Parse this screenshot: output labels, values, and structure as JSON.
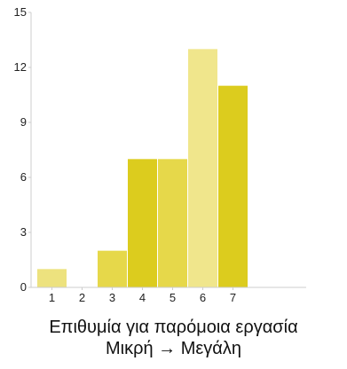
{
  "chart_data": {
    "type": "bar",
    "categories": [
      "1",
      "2",
      "3",
      "4",
      "5",
      "6",
      "7"
    ],
    "values": [
      1,
      0,
      2,
      7,
      7,
      13,
      11
    ],
    "colors": [
      "#ede27e",
      "#e6d84a",
      "#e6d84a",
      "#dccc1e",
      "#e6d84a",
      "#f0e68c",
      "#dccc1e"
    ],
    "title": "",
    "xlabel": "Επιθυμία για παρόμοια εργασία",
    "xlabel_line2": "Μικρή → Μεγάλη",
    "ylabel": "",
    "ylim": [
      0,
      15
    ],
    "yticks": [
      0,
      3,
      6,
      9,
      12,
      15
    ],
    "grid": false
  }
}
